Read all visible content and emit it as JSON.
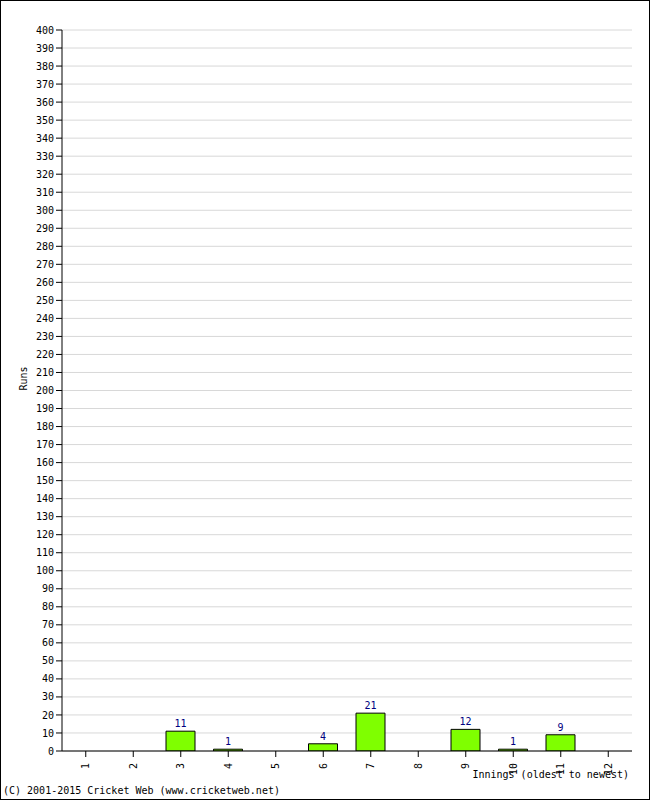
{
  "chart_data": {
    "type": "bar",
    "x_label": "Innings (oldest to newest)",
    "y_label": "Runs",
    "annotations": [
      "(C) 2001-2015 Cricket Web (www.cricketweb.net)"
    ],
    "categories": [
      "1",
      "2",
      "3",
      "4",
      "5",
      "6",
      "7",
      "8",
      "9",
      "10",
      "11",
      "12"
    ],
    "values": [
      0,
      0,
      11,
      1,
      0,
      4,
      21,
      0,
      12,
      1,
      9,
      0
    ],
    "color": "#7fff00",
    "ylim": [
      0,
      400
    ],
    "yticks": [
      0,
      10,
      20,
      30,
      40,
      50,
      60,
      70,
      80,
      90,
      100,
      110,
      120,
      130,
      140,
      150,
      160,
      170,
      180,
      190,
      200,
      210,
      220,
      230,
      240,
      250,
      260,
      270,
      280,
      290,
      300,
      310,
      320,
      330,
      340,
      350,
      360,
      370,
      380,
      390,
      400
    ],
    "grid": true,
    "data_labels": true
  }
}
